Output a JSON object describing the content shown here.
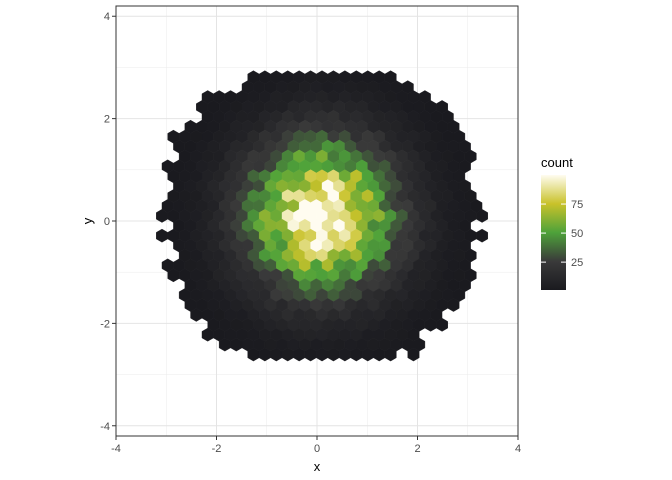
{
  "chart_data": {
    "type": "hexbin",
    "xlabel": "x",
    "ylabel": "y",
    "xlim": [
      -4,
      4
    ],
    "ylim": [
      -4.2,
      4.2
    ],
    "x_ticks": [
      "-4",
      "-2",
      "0",
      "2",
      "4"
    ],
    "y_ticks": [
      "-4",
      "-2",
      "0",
      "2",
      "4"
    ],
    "grid": true,
    "legend": {
      "title": "count",
      "position": "right",
      "ticks": [
        "25",
        "50",
        "75"
      ],
      "range": [
        1,
        100
      ]
    },
    "colors": {
      "low": "#1a1a1f",
      "mid_low": "#3a3a3a",
      "mid": "#4ea23a",
      "mid_high": "#c9c22a",
      "high": "#fffcf0"
    },
    "distribution": {
      "shape": "bivariate normal",
      "center_x": 0.1,
      "center_y": 0.1,
      "peak_count": 100
    }
  }
}
